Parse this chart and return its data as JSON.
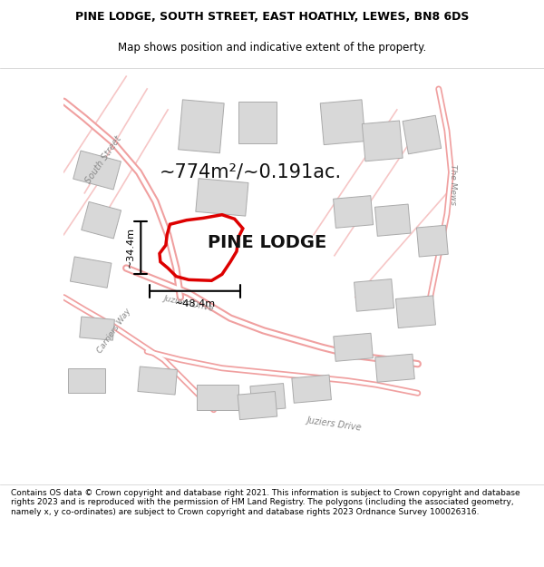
{
  "title_line1": "PINE LODGE, SOUTH STREET, EAST HOATHLY, LEWES, BN8 6DS",
  "title_line2": "Map shows position and indicative extent of the property.",
  "property_label": "PINE LODGE",
  "area_label": "~774m²/~0.191ac.",
  "width_label": "~48.4m",
  "height_label": "~34.4m",
  "footer_text": "Contains OS data © Crown copyright and database right 2021. This information is subject to Crown copyright and database rights 2023 and is reproduced with the permission of HM Land Registry. The polygons (including the associated geometry, namely x, y co-ordinates) are subject to Crown copyright and database rights 2023 Ordnance Survey 100026316.",
  "bg_color": "#f5f0f0",
  "map_bg": "#f8f5f5",
  "road_color": "#f0a0a0",
  "road_fill": "#ffffff",
  "building_fill": "#d8d8d8",
  "building_edge": "#c0c0c0",
  "property_color": "#dd0000",
  "title_fontsize": 9,
  "subtitle_fontsize": 8.5,
  "label_fontsize": 14,
  "street_label_color": "#888888",
  "street_label_fontsize": 7.5
}
